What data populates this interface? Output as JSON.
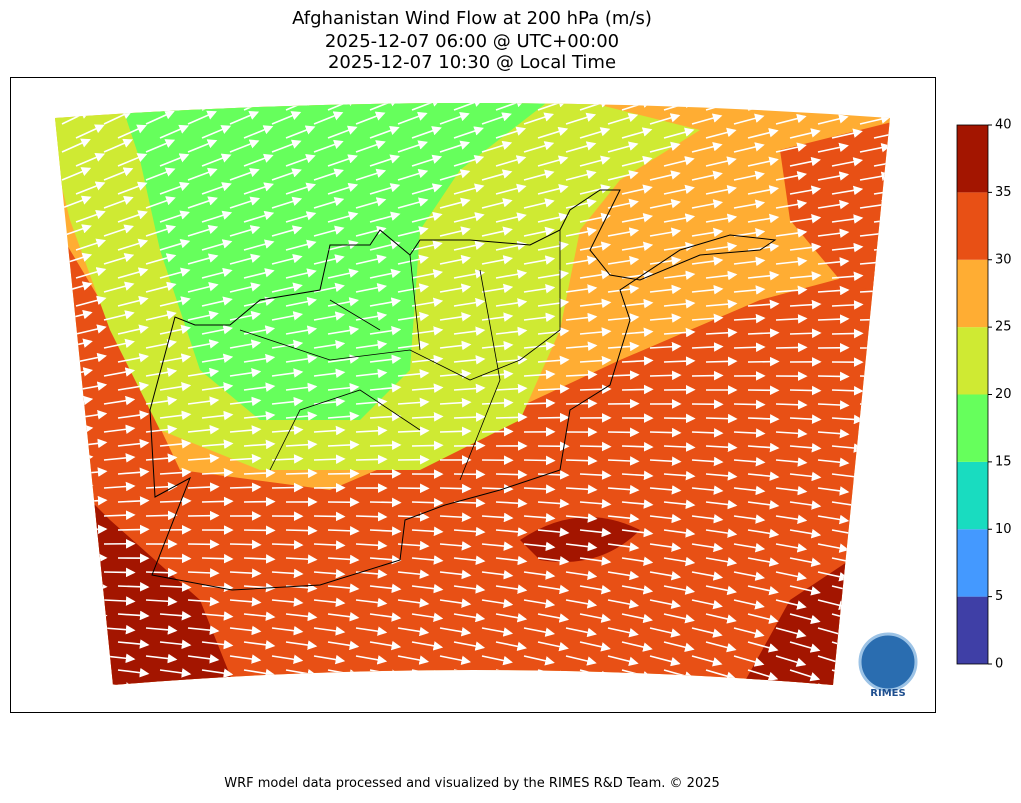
{
  "title": [
    "Afghanistan Wind Flow at 200 hPa (m/s)",
    "2025-12-07 06:00 @ UTC+00:00",
    "2025-12-07 10:30 @ Local Time"
  ],
  "colorbar": {
    "ticks": [
      0,
      5,
      10,
      15,
      20,
      25,
      30,
      35,
      40
    ],
    "colors": [
      "#3f3fa6",
      "#4499ff",
      "#19dcc0",
      "#66ff5c",
      "#cfea33",
      "#ffad33",
      "#e85015",
      "#a31500"
    ]
  },
  "logo": "RIMES",
  "footer": "WRF model data processed and visualized by the RIMES R&D Team. © 2025"
}
